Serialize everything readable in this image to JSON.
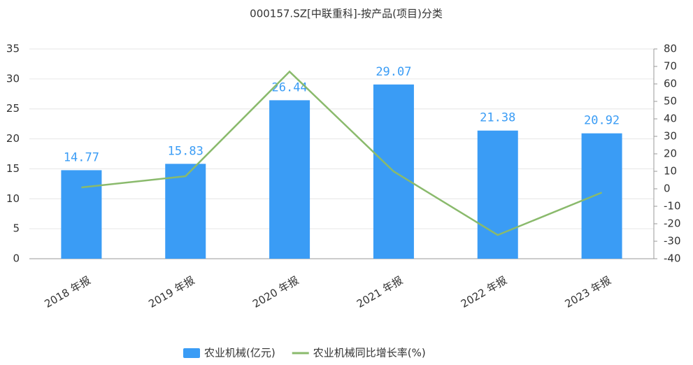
{
  "chart_data": {
    "type": "bar_line",
    "title": "000157.SZ[中联重科]-按产品(项目)分类",
    "categories": [
      "2018 年报",
      "2019 年报",
      "2020 年报",
      "2021 年报",
      "2022 年报",
      "2023 年报"
    ],
    "series": [
      {
        "name": "农业机械(亿元)",
        "color": "#3a9cf5",
        "type": "bar",
        "values": [
          14.77,
          15.83,
          26.44,
          29.07,
          21.38,
          20.92
        ]
      },
      {
        "name": "农业机械同比增长率(%)",
        "color": "#8aba6c",
        "type": "line",
        "axis": "y2",
        "values": [
          0.8,
          7.18,
          67.03,
          9.95,
          -26.45,
          -2.15
        ]
      }
    ],
    "ylim": [
      0,
      35
    ],
    "yticks": [
      0,
      5,
      10,
      15,
      20,
      25,
      30,
      35
    ],
    "y2lim": [
      -40,
      80
    ],
    "y2ticks": [
      -40,
      -30,
      -20,
      -10,
      0,
      10,
      20,
      30,
      40,
      50,
      60,
      70,
      80
    ],
    "grid": true,
    "legend": "bottom"
  }
}
